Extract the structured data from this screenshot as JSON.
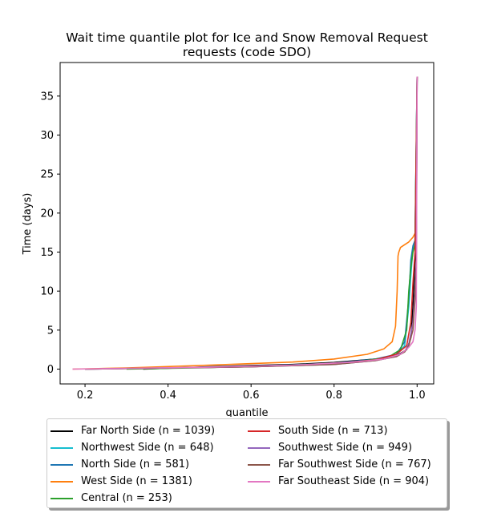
{
  "chart_data": {
    "type": "line",
    "title": "Wait time quantile plot for Ice and Snow Removal Request requests (code SDO)",
    "title_lines": [
      "Wait time quantile plot for Ice and Snow Removal Request",
      "requests (code SDO)"
    ],
    "xlabel": "quantile",
    "ylabel": "Time (days)",
    "xlim": [
      0.14,
      1.04
    ],
    "ylim": [
      -1.9,
      39.3
    ],
    "xticks": [
      0.2,
      0.4,
      0.6,
      0.8,
      1.0
    ],
    "xtick_labels": [
      "0.2",
      "0.4",
      "0.6",
      "0.8",
      "1.0"
    ],
    "yticks": [
      0,
      5,
      10,
      15,
      20,
      25,
      30,
      35
    ],
    "ytick_labels": [
      "0",
      "5",
      "10",
      "15",
      "20",
      "25",
      "30",
      "35"
    ],
    "grid": false,
    "legend_placement": "below plot, two columns",
    "series": [
      {
        "name": "Far North Side (n = 1039)",
        "color": "#000000",
        "x": [
          0.34,
          0.5,
          0.6,
          0.7,
          0.8,
          0.9,
          0.95,
          0.975,
          0.985,
          0.99,
          0.995,
          0.998,
          1.0
        ],
        "y": [
          0.0,
          0.3,
          0.45,
          0.6,
          0.85,
          1.3,
          1.7,
          2.5,
          4,
          8,
          14,
          17,
          37.5
        ]
      },
      {
        "name": "Northwest Side (n = 648)",
        "color": "#17becf",
        "x": [
          0.2,
          0.4,
          0.6,
          0.8,
          0.9,
          0.95,
          0.97,
          0.98,
          0.985,
          0.99,
          0.995,
          1.0
        ],
        "y": [
          0.0,
          0.15,
          0.35,
          0.7,
          1.2,
          1.8,
          3,
          8,
          12,
          15.5,
          16.5,
          37.5
        ]
      },
      {
        "name": "North Side (n = 581)",
        "color": "#1f77b4",
        "x": [
          0.2,
          0.4,
          0.6,
          0.8,
          0.9,
          0.95,
          0.97,
          0.98,
          0.985,
          0.99,
          0.995,
          1.0
        ],
        "y": [
          0.0,
          0.15,
          0.35,
          0.75,
          1.3,
          1.9,
          3.5,
          9,
          14,
          15.8,
          16.5,
          37.5
        ]
      },
      {
        "name": "West Side (n = 1381)",
        "color": "#ff7f0e",
        "x": [
          0.17,
          0.3,
          0.5,
          0.7,
          0.8,
          0.88,
          0.92,
          0.94,
          0.948,
          0.952,
          0.954,
          0.956,
          0.96,
          0.98,
          0.99,
          0.997,
          1.0
        ],
        "y": [
          0.0,
          0.15,
          0.5,
          0.9,
          1.3,
          1.9,
          2.6,
          3.5,
          5.5,
          10,
          14.5,
          15.0,
          15.6,
          16.3,
          16.9,
          17.6,
          37.5
        ]
      },
      {
        "name": "Central (n = 253)",
        "color": "#2ca02c",
        "x": [
          0.3,
          0.5,
          0.7,
          0.85,
          0.93,
          0.96,
          0.975,
          0.98,
          0.985,
          0.99,
          0.995,
          1.0
        ],
        "y": [
          0.0,
          0.2,
          0.5,
          0.9,
          1.5,
          2.5,
          5,
          10,
          13,
          15,
          16,
          37.5
        ]
      },
      {
        "name": "South Side (n = 713)",
        "color": "#d62728",
        "x": [
          0.2,
          0.4,
          0.6,
          0.8,
          0.9,
          0.95,
          0.975,
          0.985,
          0.99,
          0.995,
          1.0
        ],
        "y": [
          0.0,
          0.15,
          0.3,
          0.7,
          1.2,
          1.9,
          3,
          6,
          11,
          15,
          37.5
        ]
      },
      {
        "name": "Southwest Side (n = 949)",
        "color": "#9467bd",
        "x": [
          0.2,
          0.4,
          0.6,
          0.8,
          0.9,
          0.95,
          0.97,
          0.98,
          0.99,
          0.995,
          0.998,
          1.0
        ],
        "y": [
          0.0,
          0.15,
          0.3,
          0.6,
          1.1,
          1.6,
          2.3,
          3.2,
          6,
          10,
          14,
          37.5
        ]
      },
      {
        "name": "Far Southwest Side (n = 767)",
        "color": "#8c564b",
        "x": [
          0.2,
          0.4,
          0.6,
          0.8,
          0.9,
          0.95,
          0.97,
          0.98,
          0.99,
          0.995,
          0.998,
          1.0
        ],
        "y": [
          0.0,
          0.15,
          0.3,
          0.6,
          1.1,
          1.6,
          2.2,
          3.0,
          5,
          9,
          13,
          37.5
        ]
      },
      {
        "name": "Far Southeast Side (n = 904)",
        "color": "#e377c2",
        "x": [
          0.17,
          0.3,
          0.5,
          0.7,
          0.85,
          0.92,
          0.96,
          0.98,
          0.99,
          0.995,
          0.998,
          1.0
        ],
        "y": [
          0.0,
          0.1,
          0.25,
          0.5,
          0.9,
          1.3,
          1.9,
          2.8,
          3.5,
          5,
          8,
          37.5
        ]
      }
    ]
  }
}
